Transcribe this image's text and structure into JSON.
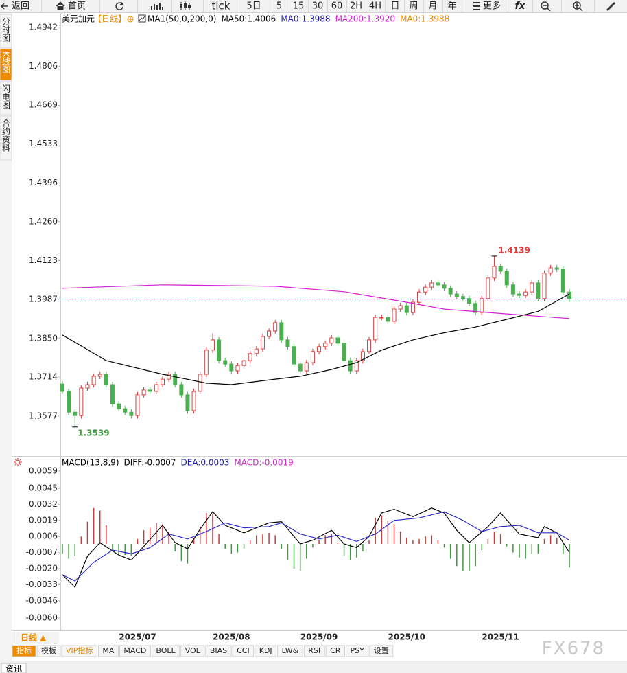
{
  "toolbar": [
    "返回",
    "首页",
    "tick",
    "5日",
    "5",
    "15",
    "30",
    "60",
    "2H",
    "4H",
    "日",
    "周",
    "月",
    "年",
    "更多",
    "fx"
  ],
  "sidebar": [
    "分时图",
    "K线图",
    "闪电图",
    "合约资料"
  ],
  "sidebar_active": 1,
  "chart_data": [
    {
      "type": "candlestick",
      "title": "美元加元",
      "period": "【日线】",
      "legend": [
        {
          "text": "MA1(50,0,200,0)",
          "color": "#000000"
        },
        {
          "text": "MA50:1.4006",
          "color": "#000000"
        },
        {
          "text": "MA0:1.3988",
          "color": "#1a1aa6"
        },
        {
          "text": "MA200:1.3920",
          "color": "#d020d0"
        },
        {
          "text": "MA0:1.3988",
          "color": "#f08a00"
        }
      ],
      "candles": {
        "open": [
          1.369,
          1.3664,
          1.3591,
          1.3579,
          1.3676,
          1.3688,
          1.3717,
          1.3724,
          1.3688,
          1.362,
          1.3603,
          1.3591,
          1.3579,
          1.3652,
          1.3669,
          1.3664,
          1.3688,
          1.3707,
          1.3724,
          1.3688,
          1.3652,
          1.3596,
          1.3664,
          1.3724,
          1.3809,
          1.3845,
          1.3772,
          1.376,
          1.3736,
          1.3755,
          1.3772,
          1.3797,
          1.3813,
          1.3857,
          1.3876,
          1.3905,
          1.3845,
          1.3821,
          1.376,
          1.3736,
          1.3765,
          1.3804,
          1.3821,
          1.3833,
          1.3852,
          1.3833,
          1.3772,
          1.3736,
          1.3772,
          1.3804,
          1.3845,
          1.3924,
          1.3924,
          1.391,
          1.3953,
          1.3965,
          1.3941,
          1.3977,
          1.4013,
          1.403,
          1.4045,
          1.4038,
          1.4026,
          1.4006,
          1.3997,
          1.399,
          1.3973,
          1.3941,
          1.399,
          1.4062,
          1.4103,
          1.4086,
          1.4038,
          1.4006,
          1.4001,
          1.4013,
          1.4045,
          1.399,
          1.4079,
          1.4098,
          1.4093,
          1.4013
        ],
        "high": [
          1.37,
          1.3674,
          1.3601,
          1.3686,
          1.3698,
          1.3727,
          1.3734,
          1.3734,
          1.3698,
          1.363,
          1.3613,
          1.3601,
          1.3662,
          1.3679,
          1.3679,
          1.3698,
          1.3717,
          1.3734,
          1.3734,
          1.3698,
          1.3662,
          1.3674,
          1.3734,
          1.3819,
          1.3868,
          1.3855,
          1.3782,
          1.377,
          1.3765,
          1.3782,
          1.3807,
          1.3823,
          1.3867,
          1.3886,
          1.3915,
          1.3915,
          1.3855,
          1.3831,
          1.377,
          1.3775,
          1.3814,
          1.3831,
          1.3843,
          1.3862,
          1.3862,
          1.3843,
          1.3782,
          1.3782,
          1.3814,
          1.3855,
          1.3934,
          1.3934,
          1.3934,
          1.3963,
          1.3975,
          1.3975,
          1.3987,
          1.4023,
          1.404,
          1.4055,
          1.4055,
          1.4048,
          1.4036,
          1.4016,
          1.4007,
          1.4,
          1.3983,
          1.4,
          1.4072,
          1.4139,
          1.4113,
          1.4096,
          1.4048,
          1.4016,
          1.4023,
          1.4055,
          1.4055,
          1.4089,
          1.4108,
          1.4108,
          1.4103,
          1.4023
        ],
        "low": [
          1.3654,
          1.3581,
          1.3539,
          1.3569,
          1.3666,
          1.3678,
          1.3707,
          1.3678,
          1.361,
          1.3593,
          1.3581,
          1.3569,
          1.3569,
          1.3642,
          1.3654,
          1.3654,
          1.3678,
          1.3697,
          1.3678,
          1.3642,
          1.3586,
          1.3586,
          1.3654,
          1.3714,
          1.3799,
          1.3762,
          1.375,
          1.3726,
          1.3726,
          1.3745,
          1.3762,
          1.3787,
          1.3803,
          1.3847,
          1.3866,
          1.3835,
          1.3811,
          1.375,
          1.3726,
          1.3726,
          1.3755,
          1.3794,
          1.3811,
          1.3823,
          1.3823,
          1.3762,
          1.3726,
          1.3726,
          1.3762,
          1.3794,
          1.3835,
          1.3914,
          1.39,
          1.39,
          1.3943,
          1.3931,
          1.3931,
          1.3967,
          1.4003,
          1.402,
          1.4028,
          1.4016,
          1.3996,
          1.3987,
          1.398,
          1.3963,
          1.3931,
          1.3931,
          1.398,
          1.4052,
          1.4076,
          1.4028,
          1.3996,
          1.3991,
          1.3991,
          1.4003,
          1.398,
          1.398,
          1.4069,
          1.4083,
          1.4003,
          1.3978
        ],
        "close": [
          1.3664,
          1.3591,
          1.3579,
          1.3676,
          1.3688,
          1.3717,
          1.3724,
          1.3688,
          1.362,
          1.3603,
          1.3591,
          1.3579,
          1.3652,
          1.3669,
          1.3664,
          1.3688,
          1.3707,
          1.3724,
          1.3688,
          1.3652,
          1.3596,
          1.3664,
          1.3724,
          1.3809,
          1.3845,
          1.3772,
          1.376,
          1.3736,
          1.3755,
          1.3772,
          1.3797,
          1.3813,
          1.3857,
          1.3876,
          1.3905,
          1.3845,
          1.3821,
          1.376,
          1.3736,
          1.3765,
          1.3804,
          1.3821,
          1.3833,
          1.3852,
          1.3833,
          1.3772,
          1.3736,
          1.3772,
          1.3804,
          1.3845,
          1.3924,
          1.3924,
          1.391,
          1.3953,
          1.3965,
          1.3941,
          1.3977,
          1.4013,
          1.403,
          1.4045,
          1.4038,
          1.4026,
          1.4006,
          1.3997,
          1.399,
          1.3973,
          1.3941,
          1.399,
          1.4062,
          1.4103,
          1.4086,
          1.4038,
          1.4006,
          1.4001,
          1.4013,
          1.4045,
          1.399,
          1.4079,
          1.4098,
          1.4093,
          1.4013,
          1.3988
        ]
      },
      "up_color": "#e03c3c",
      "down_color": "#4caf50",
      "last_line_color": "#1f8a8a",
      "series": [
        {
          "color": "#000000",
          "x": [
            0,
            7,
            16,
            23,
            27,
            34,
            38,
            43,
            47,
            51,
            56,
            61,
            66,
            71,
            76,
            81
          ],
          "values": [
            1.3862,
            1.3772,
            1.3724,
            1.3693,
            1.3688,
            1.3707,
            1.3717,
            1.3741,
            1.3765,
            1.3809,
            1.3845,
            1.387,
            1.389,
            1.3917,
            1.3945,
            1.4006
          ]
        },
        {
          "color": "#d020d0",
          "x": [
            0,
            16,
            34,
            45,
            55,
            61,
            71,
            81
          ],
          "values": [
            1.4026,
            1.4038,
            1.4033,
            1.4014,
            1.3977,
            1.3953,
            1.3936,
            1.392
          ]
        }
      ],
      "ylim": [
        1.3442,
        1.499
      ],
      "yticks": [
        1.4942,
        1.4806,
        1.4669,
        1.4533,
        1.4396,
        {
          "value": 1.426,
          "label": "1.4260"
        },
        1.4123,
        1.3987,
        {
          "value": 1.385,
          "label": "1.3850"
        },
        1.3714,
        1.3577
      ]
    },
    {
      "type": "macd",
      "legend": [
        {
          "text": "MACD(13,8,9)",
          "color": "#000000"
        },
        {
          "text": "DIFF:-0.0007",
          "color": "#000000"
        },
        {
          "text": "DEA:0.0003",
          "color": "#1a1aa6"
        },
        {
          "text": "MACD:-0.0019",
          "color": "#d020d0"
        }
      ],
      "categories": [
        null,
        null,
        null,
        null,
        null,
        null,
        null,
        null,
        null,
        null,
        null,
        null,
        "2025/07",
        null,
        null,
        null,
        null,
        null,
        null,
        null,
        null,
        null,
        null,
        null,
        null,
        null,
        null,
        "2025/08",
        null,
        null,
        null,
        null,
        null,
        null,
        null,
        null,
        null,
        null,
        null,
        null,
        null,
        "2025/09",
        null,
        null,
        null,
        null,
        null,
        null,
        null,
        null,
        null,
        null,
        null,
        null,
        null,
        "2025/10",
        null,
        null,
        null,
        null,
        null,
        null,
        null,
        null,
        null,
        null,
        null,
        null,
        null,
        null,
        "2025/11",
        null,
        null,
        null,
        null,
        null,
        null,
        null,
        null,
        null,
        null,
        null
      ],
      "series": [
        {
          "kind": "bar",
          "up_color": "#c83a3a",
          "down_color": "#3f9a3f",
          "values": [
            -0.0008,
            -0.0012,
            -0.001,
            0.0006,
            0.0018,
            0.0029,
            0.0027,
            0.0015,
            -0.0006,
            -0.0008,
            -0.0009,
            -0.001,
            0.0004,
            0.0011,
            0.0013,
            0.0017,
            0.0016,
            0.001,
            -0.0006,
            -0.0014,
            -0.0016,
            0.0005,
            0.0014,
            0.0025,
            0.0024,
            0.0008,
            -0.0004,
            -0.0008,
            -0.0007,
            -0.0004,
            0.0003,
            0.0007,
            0.0008,
            0.0009,
            0.0007,
            -0.0004,
            -0.0013,
            -0.002,
            -0.0022,
            -0.0012,
            -0.0003,
            0.0003,
            0.0007,
            0.0008,
            0.0001,
            -0.001,
            -0.0013,
            -0.0011,
            -0.0006,
            0.0003,
            0.0021,
            0.0023,
            0.0019,
            0.0016,
            0.001,
            0.0005,
            0.0003,
            0.0004,
            0.0006,
            0.0007,
            0.0003,
            -0.0003,
            -0.0012,
            -0.0018,
            -0.0022,
            -0.0022,
            -0.0018,
            -0.0005,
            0.0004,
            0.001,
            0.0008,
            -0.0002,
            -0.0007,
            -0.0011,
            -0.0012,
            -0.0008,
            -0.0008,
            0.0004,
            0.0007,
            0.0005,
            -0.0008,
            -0.0019
          ]
        },
        {
          "kind": "line",
          "color": "#000000",
          "x": [
            0,
            2,
            4,
            6,
            9,
            11,
            13,
            16,
            18,
            20,
            22,
            24,
            26,
            29,
            33,
            35,
            38,
            40,
            43,
            45,
            47,
            49,
            51,
            53,
            56,
            59,
            61,
            63,
            65,
            68,
            70,
            73,
            76,
            77,
            79,
            81
          ],
          "values": [
            -0.0025,
            -0.0035,
            -0.001,
            0.0001,
            -0.0009,
            -0.0013,
            -0.0002,
            0.0015,
            0.0001,
            -0.0004,
            0.0012,
            0.0026,
            0.0015,
            0.0009,
            0.0017,
            0.0018,
            0.0,
            0.0003,
            0.0011,
            0.0,
            -0.0003,
            0.0006,
            0.0025,
            0.0028,
            0.0022,
            0.0029,
            0.0025,
            0.0011,
            0.0001,
            0.0014,
            0.0025,
            0.0008,
            0.0005,
            0.0014,
            0.0009,
            -0.0007
          ]
        },
        {
          "kind": "line",
          "color": "#2a2ac8",
          "x": [
            0,
            2,
            5,
            8,
            11,
            14,
            17,
            20,
            23,
            26,
            29,
            33,
            35,
            38,
            41,
            44,
            47,
            50,
            53,
            57,
            61,
            64,
            67,
            70,
            73,
            76,
            79,
            81
          ],
          "values": [
            -0.0025,
            -0.003,
            -0.0015,
            -0.0005,
            -0.0008,
            -0.0003,
            0.0008,
            0.0004,
            0.001,
            0.0017,
            0.0013,
            0.0014,
            0.0017,
            0.0008,
            0.0004,
            0.0007,
            0.0002,
            0.0008,
            0.0019,
            0.0021,
            0.0026,
            0.0019,
            0.001,
            0.0014,
            0.0015,
            0.0009,
            0.0009,
            0.0003
          ]
        }
      ],
      "ylim": [
        -0.007,
        0.007
      ],
      "yticks": [
        0.0059,
        {
          "value": 0.0045,
          "label": "0.0045"
        },
        {
          "value": 0.0032,
          "label": "0.0032"
        },
        {
          "value": 0.0019,
          "label": "0.0019"
        },
        {
          "value": 0.0006,
          "label": "0.0006"
        },
        {
          "value": -0.0007,
          "label": "-0.0007"
        },
        {
          "value": -0.002,
          "label": "-0.0020"
        },
        {
          "value": -0.0033,
          "label": "-0.0033"
        },
        {
          "value": -0.0046,
          "label": "-0.0046"
        },
        {
          "value": -0.006,
          "label": "-0.0060"
        }
      ]
    }
  ],
  "period_selector": "日线 ▲",
  "indicator_tabs": [
    "指标",
    "模板",
    "VIP指标",
    "MA",
    "MACD",
    "BOLL",
    "VOL",
    "BIAS",
    "CCI",
    "KDJ",
    "LW&",
    "RSI",
    "CR",
    "PSY",
    "设置"
  ],
  "active_tab": 0,
  "vip_tab": 2,
  "footer": "资讯",
  "watermark": "FX678"
}
